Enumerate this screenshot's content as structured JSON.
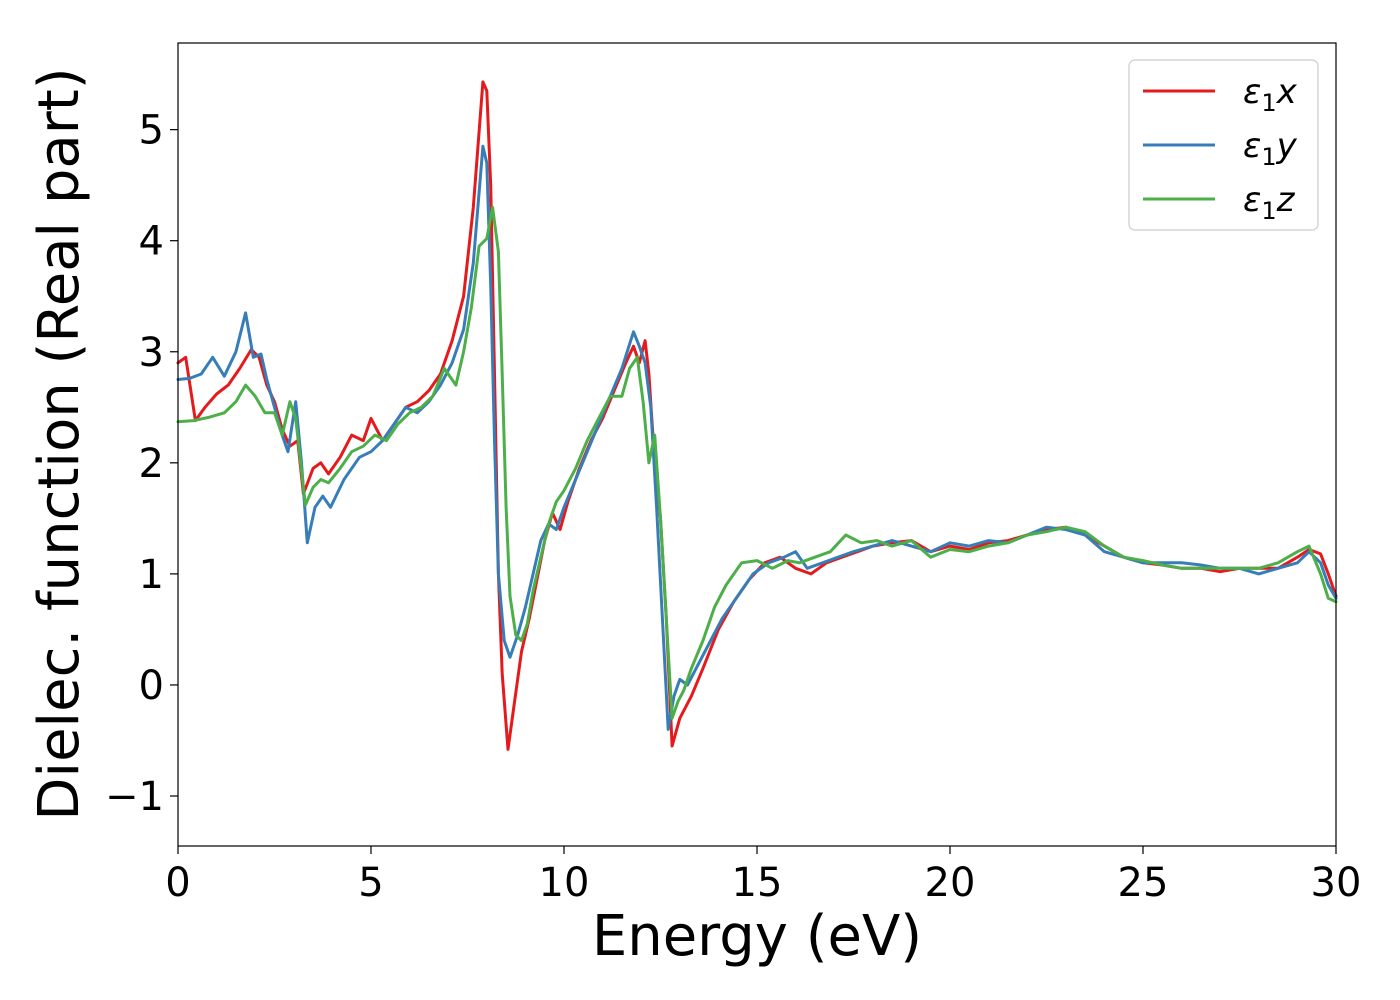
{
  "chart_data": {
    "type": "line",
    "xlabel": "Energy (eV)",
    "ylabel": "Dielec. function (Real part)",
    "xlim": [
      0,
      30
    ],
    "ylim": [
      -1.45,
      5.78
    ],
    "xticks": [
      0,
      5,
      10,
      15,
      20,
      25,
      30
    ],
    "yticks": [
      -1,
      0,
      1,
      2,
      3,
      4,
      5
    ],
    "grid": false,
    "legend_position": "top-right",
    "series": [
      {
        "name": "ε1x",
        "legend_symbol": "ε",
        "legend_sub": "1",
        "legend_var": "x",
        "color": "#e41a1c",
        "x": [
          0,
          0.2,
          0.45,
          0.7,
          1.0,
          1.3,
          1.6,
          1.9,
          2.1,
          2.3,
          2.5,
          2.7,
          2.9,
          3.1,
          3.25,
          3.5,
          3.7,
          3.9,
          4.2,
          4.5,
          4.8,
          5.0,
          5.3,
          5.6,
          5.9,
          6.2,
          6.5,
          6.8,
          7.1,
          7.4,
          7.65,
          7.9,
          8.0,
          8.1,
          8.2,
          8.3,
          8.4,
          8.55,
          8.7,
          8.9,
          9.1,
          9.3,
          9.5,
          9.7,
          9.9,
          10.1,
          10.4,
          10.7,
          11.0,
          11.3,
          11.6,
          11.8,
          11.95,
          12.1,
          12.2,
          12.35,
          12.5,
          12.65,
          12.8,
          13.0,
          13.3,
          13.6,
          14.0,
          14.4,
          14.8,
          15.2,
          15.6,
          16.0,
          16.4,
          16.8,
          17.2,
          17.6,
          18.0,
          18.5,
          19.0,
          19.5,
          20.0,
          20.5,
          21.0,
          21.5,
          22.0,
          22.5,
          23.0,
          23.5,
          24.0,
          24.5,
          25.0,
          25.5,
          26.0,
          26.5,
          27.0,
          27.5,
          28.0,
          28.5,
          29.0,
          29.3,
          29.6,
          29.8,
          30.0
        ],
        "y": [
          2.9,
          2.95,
          2.38,
          2.5,
          2.62,
          2.7,
          2.85,
          3.02,
          2.95,
          2.7,
          2.55,
          2.3,
          2.15,
          2.2,
          1.72,
          1.95,
          2.0,
          1.9,
          2.05,
          2.25,
          2.2,
          2.4,
          2.2,
          2.35,
          2.5,
          2.55,
          2.65,
          2.8,
          3.1,
          3.5,
          4.3,
          5.43,
          5.35,
          4.5,
          2.8,
          1.0,
          0.1,
          -0.58,
          -0.2,
          0.3,
          0.6,
          0.95,
          1.3,
          1.55,
          1.4,
          1.65,
          1.95,
          2.2,
          2.4,
          2.65,
          2.9,
          3.05,
          2.9,
          3.1,
          2.8,
          2.0,
          1.5,
          0.6,
          -0.55,
          -0.3,
          -0.1,
          0.15,
          0.5,
          0.75,
          0.95,
          1.1,
          1.15,
          1.05,
          1.0,
          1.1,
          1.15,
          1.2,
          1.25,
          1.28,
          1.3,
          1.2,
          1.25,
          1.22,
          1.28,
          1.3,
          1.35,
          1.4,
          1.42,
          1.35,
          1.25,
          1.15,
          1.1,
          1.08,
          1.05,
          1.05,
          1.02,
          1.05,
          1.05,
          1.05,
          1.15,
          1.22,
          1.18,
          1.0,
          0.8
        ]
      },
      {
        "name": "ε1y",
        "legend_symbol": "ε",
        "legend_sub": "1",
        "legend_var": "y",
        "color": "#377eb8",
        "x": [
          0,
          0.3,
          0.6,
          0.9,
          1.2,
          1.5,
          1.75,
          1.95,
          2.15,
          2.3,
          2.5,
          2.7,
          2.85,
          3.05,
          3.2,
          3.35,
          3.55,
          3.75,
          3.95,
          4.3,
          4.7,
          5.0,
          5.3,
          5.6,
          5.9,
          6.2,
          6.5,
          6.8,
          7.1,
          7.4,
          7.65,
          7.9,
          8.0,
          8.1,
          8.2,
          8.3,
          8.45,
          8.6,
          8.8,
          9.0,
          9.2,
          9.4,
          9.6,
          9.8,
          10.0,
          10.3,
          10.6,
          10.9,
          11.2,
          11.5,
          11.8,
          11.95,
          12.1,
          12.25,
          12.4,
          12.55,
          12.7,
          12.85,
          13.0,
          13.2,
          13.5,
          13.8,
          14.1,
          14.5,
          14.9,
          15.3,
          15.7,
          16.0,
          16.3,
          16.7,
          17.1,
          17.5,
          18.0,
          18.5,
          19.0,
          19.5,
          20.0,
          20.5,
          21.0,
          21.5,
          22.0,
          22.5,
          23.0,
          23.5,
          24.0,
          24.5,
          25.0,
          25.5,
          26.0,
          26.5,
          27.0,
          27.5,
          28.0,
          28.5,
          29.0,
          29.3,
          29.6,
          29.8,
          30.0
        ],
        "y": [
          2.75,
          2.76,
          2.8,
          2.95,
          2.78,
          3.0,
          3.35,
          2.95,
          2.98,
          2.75,
          2.5,
          2.25,
          2.1,
          2.55,
          2.0,
          1.28,
          1.6,
          1.7,
          1.6,
          1.85,
          2.05,
          2.1,
          2.2,
          2.35,
          2.5,
          2.45,
          2.55,
          2.7,
          2.9,
          3.2,
          3.8,
          4.85,
          4.7,
          3.6,
          2.2,
          1.0,
          0.4,
          0.25,
          0.45,
          0.7,
          1.0,
          1.3,
          1.45,
          1.4,
          1.6,
          1.85,
          2.1,
          2.35,
          2.6,
          2.85,
          3.18,
          3.05,
          2.9,
          2.5,
          1.6,
          0.6,
          -0.4,
          -0.1,
          0.05,
          0.0,
          0.2,
          0.4,
          0.6,
          0.8,
          1.0,
          1.1,
          1.15,
          1.2,
          1.05,
          1.1,
          1.15,
          1.2,
          1.25,
          1.3,
          1.25,
          1.2,
          1.28,
          1.25,
          1.3,
          1.28,
          1.35,
          1.42,
          1.4,
          1.35,
          1.2,
          1.15,
          1.1,
          1.1,
          1.1,
          1.08,
          1.05,
          1.05,
          1.0,
          1.05,
          1.1,
          1.2,
          1.1,
          0.9,
          0.78
        ]
      },
      {
        "name": "ε1z",
        "legend_symbol": "ε",
        "legend_sub": "1",
        "legend_var": "z",
        "color": "#4daf4a",
        "x": [
          0,
          0.4,
          0.8,
          1.2,
          1.5,
          1.75,
          2.0,
          2.25,
          2.5,
          2.7,
          2.9,
          3.05,
          3.3,
          3.5,
          3.7,
          3.9,
          4.2,
          4.5,
          4.8,
          5.1,
          5.4,
          5.7,
          6.0,
          6.3,
          6.6,
          6.9,
          7.2,
          7.4,
          7.6,
          7.8,
          8.0,
          8.15,
          8.3,
          8.4,
          8.5,
          8.6,
          8.75,
          8.9,
          9.05,
          9.2,
          9.4,
          9.6,
          9.8,
          10.0,
          10.3,
          10.6,
          10.9,
          11.2,
          11.5,
          11.7,
          11.9,
          12.05,
          12.2,
          12.35,
          12.5,
          12.65,
          12.8,
          12.95,
          13.1,
          13.3,
          13.6,
          13.9,
          14.2,
          14.6,
          15.0,
          15.4,
          15.8,
          16.1,
          16.5,
          16.9,
          17.3,
          17.7,
          18.1,
          18.5,
          19.0,
          19.5,
          20.0,
          20.5,
          21.0,
          21.5,
          22.0,
          22.5,
          23.0,
          23.5,
          24.0,
          24.5,
          25.0,
          25.5,
          26.0,
          26.5,
          27.0,
          27.5,
          28.0,
          28.5,
          29.0,
          29.3,
          29.6,
          29.8,
          30.0
        ],
        "y": [
          2.37,
          2.38,
          2.41,
          2.45,
          2.55,
          2.7,
          2.6,
          2.45,
          2.45,
          2.25,
          2.55,
          2.4,
          1.62,
          1.78,
          1.85,
          1.82,
          1.95,
          2.1,
          2.15,
          2.25,
          2.2,
          2.35,
          2.45,
          2.5,
          2.6,
          2.85,
          2.7,
          3.0,
          3.4,
          3.95,
          4.02,
          4.3,
          3.9,
          2.8,
          1.6,
          0.8,
          0.45,
          0.4,
          0.55,
          0.85,
          1.15,
          1.45,
          1.65,
          1.75,
          1.95,
          2.2,
          2.4,
          2.6,
          2.6,
          2.85,
          2.95,
          2.55,
          2.0,
          2.25,
          1.5,
          0.6,
          -0.3,
          -0.15,
          -0.05,
          0.15,
          0.4,
          0.7,
          0.9,
          1.1,
          1.12,
          1.05,
          1.12,
          1.1,
          1.15,
          1.2,
          1.35,
          1.28,
          1.3,
          1.25,
          1.3,
          1.15,
          1.22,
          1.2,
          1.25,
          1.28,
          1.35,
          1.38,
          1.42,
          1.38,
          1.25,
          1.15,
          1.12,
          1.08,
          1.05,
          1.05,
          1.05,
          1.05,
          1.05,
          1.1,
          1.2,
          1.25,
          1.0,
          0.78,
          0.75
        ]
      }
    ]
  }
}
